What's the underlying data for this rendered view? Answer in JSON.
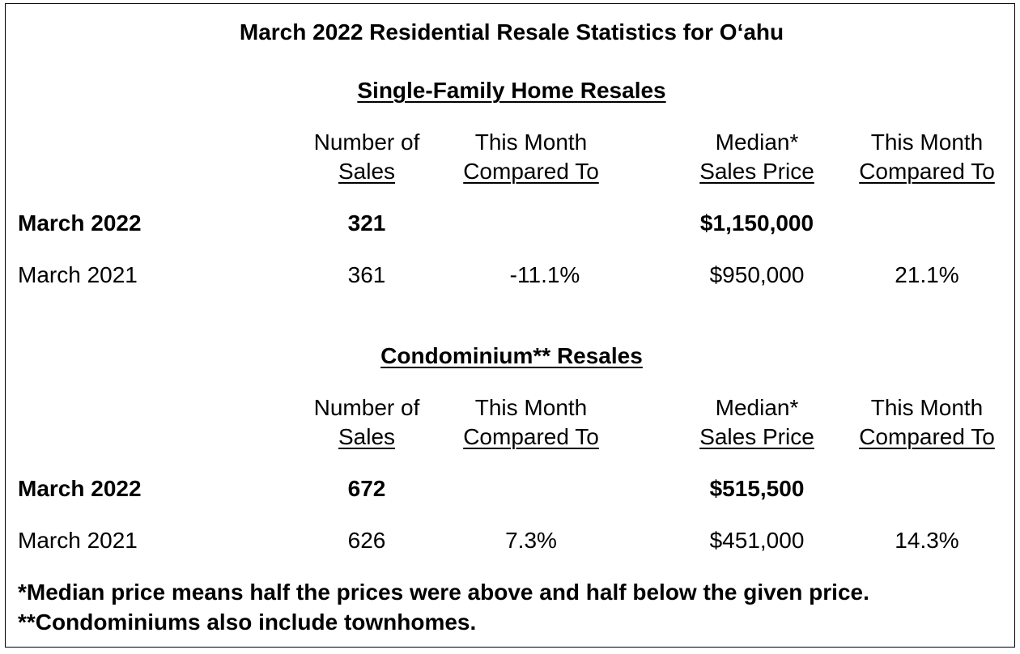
{
  "title": "March 2022 Residential Resale Statistics for O‘ahu",
  "headers": {
    "num_line1": "Number of",
    "num_line2": "Sales",
    "cmp_line1": "This Month",
    "cmp_line2": "Compared To",
    "med_line1": "Median*",
    "med_line2": "Sales Price",
    "pct_line1": "This Month",
    "pct_line2": "Compared To"
  },
  "single_family": {
    "heading": "Single-Family Home Resales",
    "current": {
      "label": "March 2022",
      "sales": "321",
      "change": "",
      "median": "$1,150,000",
      "price_change": ""
    },
    "prior": {
      "label": "March 2021",
      "sales": "361",
      "change": "-11.1%",
      "median": "$950,000",
      "price_change": "21.1%"
    }
  },
  "condo": {
    "heading": "Condominium** Resales",
    "current": {
      "label": "March 2022",
      "sales": "672",
      "change": "",
      "median": "$515,500",
      "price_change": ""
    },
    "prior": {
      "label": "March 2021",
      "sales": "626",
      "change": "7.3%",
      "median": "$451,000",
      "price_change": "14.3%"
    }
  },
  "footnotes": {
    "median": "*Median price means half the prices were above and half below the given price.",
    "condo": "**Condominiums also include townhomes."
  }
}
